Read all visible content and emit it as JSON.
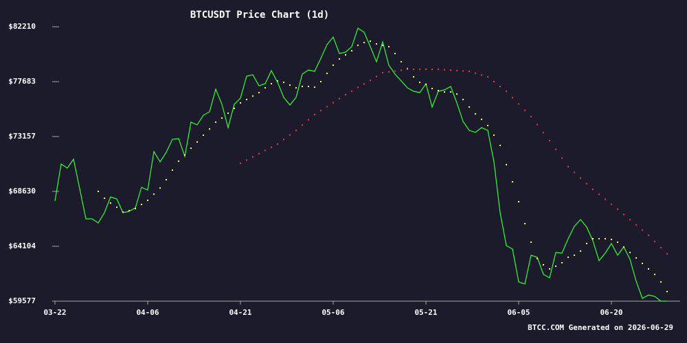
{
  "chart_data": {
    "type": "line",
    "title": "BTCUSDT Price Chart (1d)",
    "footer": "BTCC.COM Generated on 2026-06-29",
    "categories": [
      "03-22",
      null,
      null,
      null,
      null,
      null,
      null,
      null,
      null,
      null,
      null,
      null,
      null,
      null,
      null,
      "04-06",
      null,
      null,
      null,
      null,
      null,
      null,
      null,
      null,
      null,
      null,
      null,
      null,
      null,
      null,
      "04-21",
      null,
      null,
      null,
      null,
      null,
      null,
      null,
      null,
      null,
      null,
      null,
      null,
      null,
      null,
      "05-06",
      null,
      null,
      null,
      null,
      null,
      null,
      null,
      null,
      null,
      null,
      null,
      null,
      null,
      null,
      "05-21",
      null,
      null,
      null,
      null,
      null,
      null,
      null,
      null,
      null,
      null,
      null,
      null,
      null,
      null,
      "06-05",
      null,
      null,
      null,
      null,
      null,
      null,
      null,
      null,
      null,
      null,
      null,
      null,
      null,
      null,
      "06-20",
      null,
      null,
      null,
      null,
      null,
      null,
      null,
      null,
      null
    ],
    "ylim": [
      59577,
      82210
    ],
    "yticks": [
      {
        "value": 59577,
        "label": "$59577"
      },
      {
        "value": 64104,
        "label": "$64104"
      },
      {
        "value": 68630,
        "label": "$68630"
      },
      {
        "value": 73157,
        "label": "$73157"
      },
      {
        "value": 77683,
        "label": "$77683"
      },
      {
        "value": 82210,
        "label": "$82210"
      }
    ],
    "series": [
      {
        "color": "#33ff33",
        "marker": "line",
        "values": [
          67838,
          70893,
          70554,
          71289,
          68856,
          66367,
          66367,
          66027,
          66876,
          68177,
          68007,
          66876,
          66989,
          67272,
          68969,
          68743,
          71911,
          71063,
          71855,
          72930,
          72986,
          71515,
          74344,
          74118,
          74910,
          75193,
          77060,
          75815,
          73892,
          75815,
          76325,
          78135,
          78248,
          77343,
          77513,
          78588,
          77626,
          76381,
          75759,
          76381,
          78305,
          78644,
          78531,
          79606,
          80738,
          81360,
          80002,
          80116,
          80568,
          82096,
          81756,
          80568,
          79323,
          80964,
          79041,
          78305,
          77739,
          77173,
          76890,
          76777,
          77513,
          75589,
          76890,
          77004,
          77287,
          75929,
          74401,
          73665,
          73496,
          73892,
          73665,
          71063,
          66876,
          64160,
          63877,
          61161,
          60992,
          63368,
          63198,
          61784,
          61501,
          63594,
          63538,
          64726,
          65744,
          66310,
          65688,
          64556,
          62915,
          63538,
          64330,
          63368,
          64047,
          63028,
          61218,
          59803,
          60086,
          59973,
          59577,
          59577
        ]
      },
      {
        "color": "#ffff33",
        "marker": "dot",
        "values": [
          null,
          null,
          null,
          null,
          null,
          null,
          null,
          68630,
          68064,
          67668,
          67328,
          66932,
          67046,
          67215,
          67555,
          67894,
          68403,
          68913,
          69592,
          70384,
          71119,
          71629,
          72194,
          72704,
          73269,
          73779,
          74344,
          74684,
          75080,
          75476,
          75929,
          76212,
          76494,
          76777,
          77173,
          77513,
          77739,
          77626,
          77400,
          77173,
          77287,
          77287,
          77230,
          77683,
          78362,
          79041,
          79550,
          79889,
          80229,
          80681,
          80908,
          81021,
          80795,
          80681,
          80568,
          80002,
          79323,
          78758,
          78079,
          77626,
          77456,
          77117,
          76947,
          76834,
          76834,
          76664,
          76212,
          75589,
          75023,
          74571,
          74061,
          73269,
          72421,
          70836,
          69422,
          67781,
          65971,
          64443,
          63085,
          62576,
          62236,
          62463,
          62745,
          63198,
          63368,
          63707,
          64330,
          64726,
          64726,
          64726,
          64669,
          64443,
          64047,
          63594,
          63142,
          62689,
          62236,
          61784,
          61161,
          60369
        ]
      },
      {
        "color": "#ff3333",
        "marker": "dot",
        "values": [
          null,
          null,
          null,
          null,
          null,
          null,
          null,
          null,
          null,
          null,
          null,
          null,
          null,
          null,
          null,
          null,
          null,
          null,
          null,
          null,
          null,
          null,
          null,
          null,
          null,
          null,
          null,
          null,
          null,
          null,
          70950,
          71215,
          71476,
          71742,
          72008,
          72268,
          72534,
          72913,
          73286,
          73665,
          74101,
          74531,
          74967,
          75295,
          75623,
          75951,
          76279,
          76608,
          76902,
          77202,
          77496,
          77796,
          78107,
          78418,
          78486,
          78560,
          78627,
          78701,
          78701,
          78701,
          78701,
          78701,
          78701,
          78667,
          78633,
          78599,
          78565,
          78531,
          78378,
          78231,
          78079,
          77683,
          77287,
          76890,
          76364,
          75844,
          75318,
          74797,
          74135,
          73479,
          72817,
          72098,
          71385,
          70667,
          70197,
          69733,
          69263,
          68800,
          68387,
          67979,
          67566,
          67159,
          66729,
          66299,
          65869,
          65439,
          65009,
          64499,
          63990,
          63481
        ]
      }
    ]
  }
}
